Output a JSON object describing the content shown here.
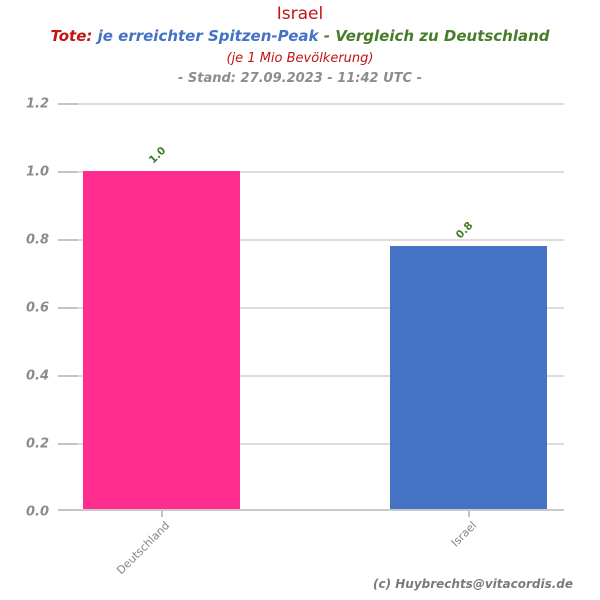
{
  "header": {
    "title": "Israel",
    "subtitle_parts": [
      {
        "text": "Tote: ",
        "color": "#c01515"
      },
      {
        "text": "je erreichter Spitzen-Peak",
        "color": "#4472c4"
      },
      {
        "text": " - ",
        "color": "#457d2b"
      },
      {
        "text": "Vergleich zu Deutschland",
        "color": "#457d2b"
      }
    ],
    "subtitle2": "(je 1 Mio Bevölkerung)",
    "stand_line": "- Stand: 27.09.2023 - 11:42 UTC -"
  },
  "chart_data": {
    "type": "bar",
    "title": "Israel",
    "subtitle": "Tote: je erreichter Spitzen-Peak - Vergleich zu Deutschland (je 1 Mio Bevölkerung) - Stand: 27.09.2023 - 11:42 UTC -",
    "categories": [
      "Deutschland",
      "Israel"
    ],
    "values": [
      1.0,
      0.78
    ],
    "bar_labels": [
      "1.0",
      "0.8"
    ],
    "bar_colors": [
      "#ff2d8e",
      "#4472c4"
    ],
    "value_label_color": "#3f7e23",
    "xlabel": "",
    "ylabel": "",
    "ylim": [
      0,
      1.2
    ],
    "yticks": [
      0,
      0.2,
      0.4,
      0.6,
      0.8,
      1.0,
      1.2
    ],
    "grid": true,
    "legend": "none"
  },
  "footer": {
    "credit": "(c) Huybrechts@vitacordis.de"
  }
}
